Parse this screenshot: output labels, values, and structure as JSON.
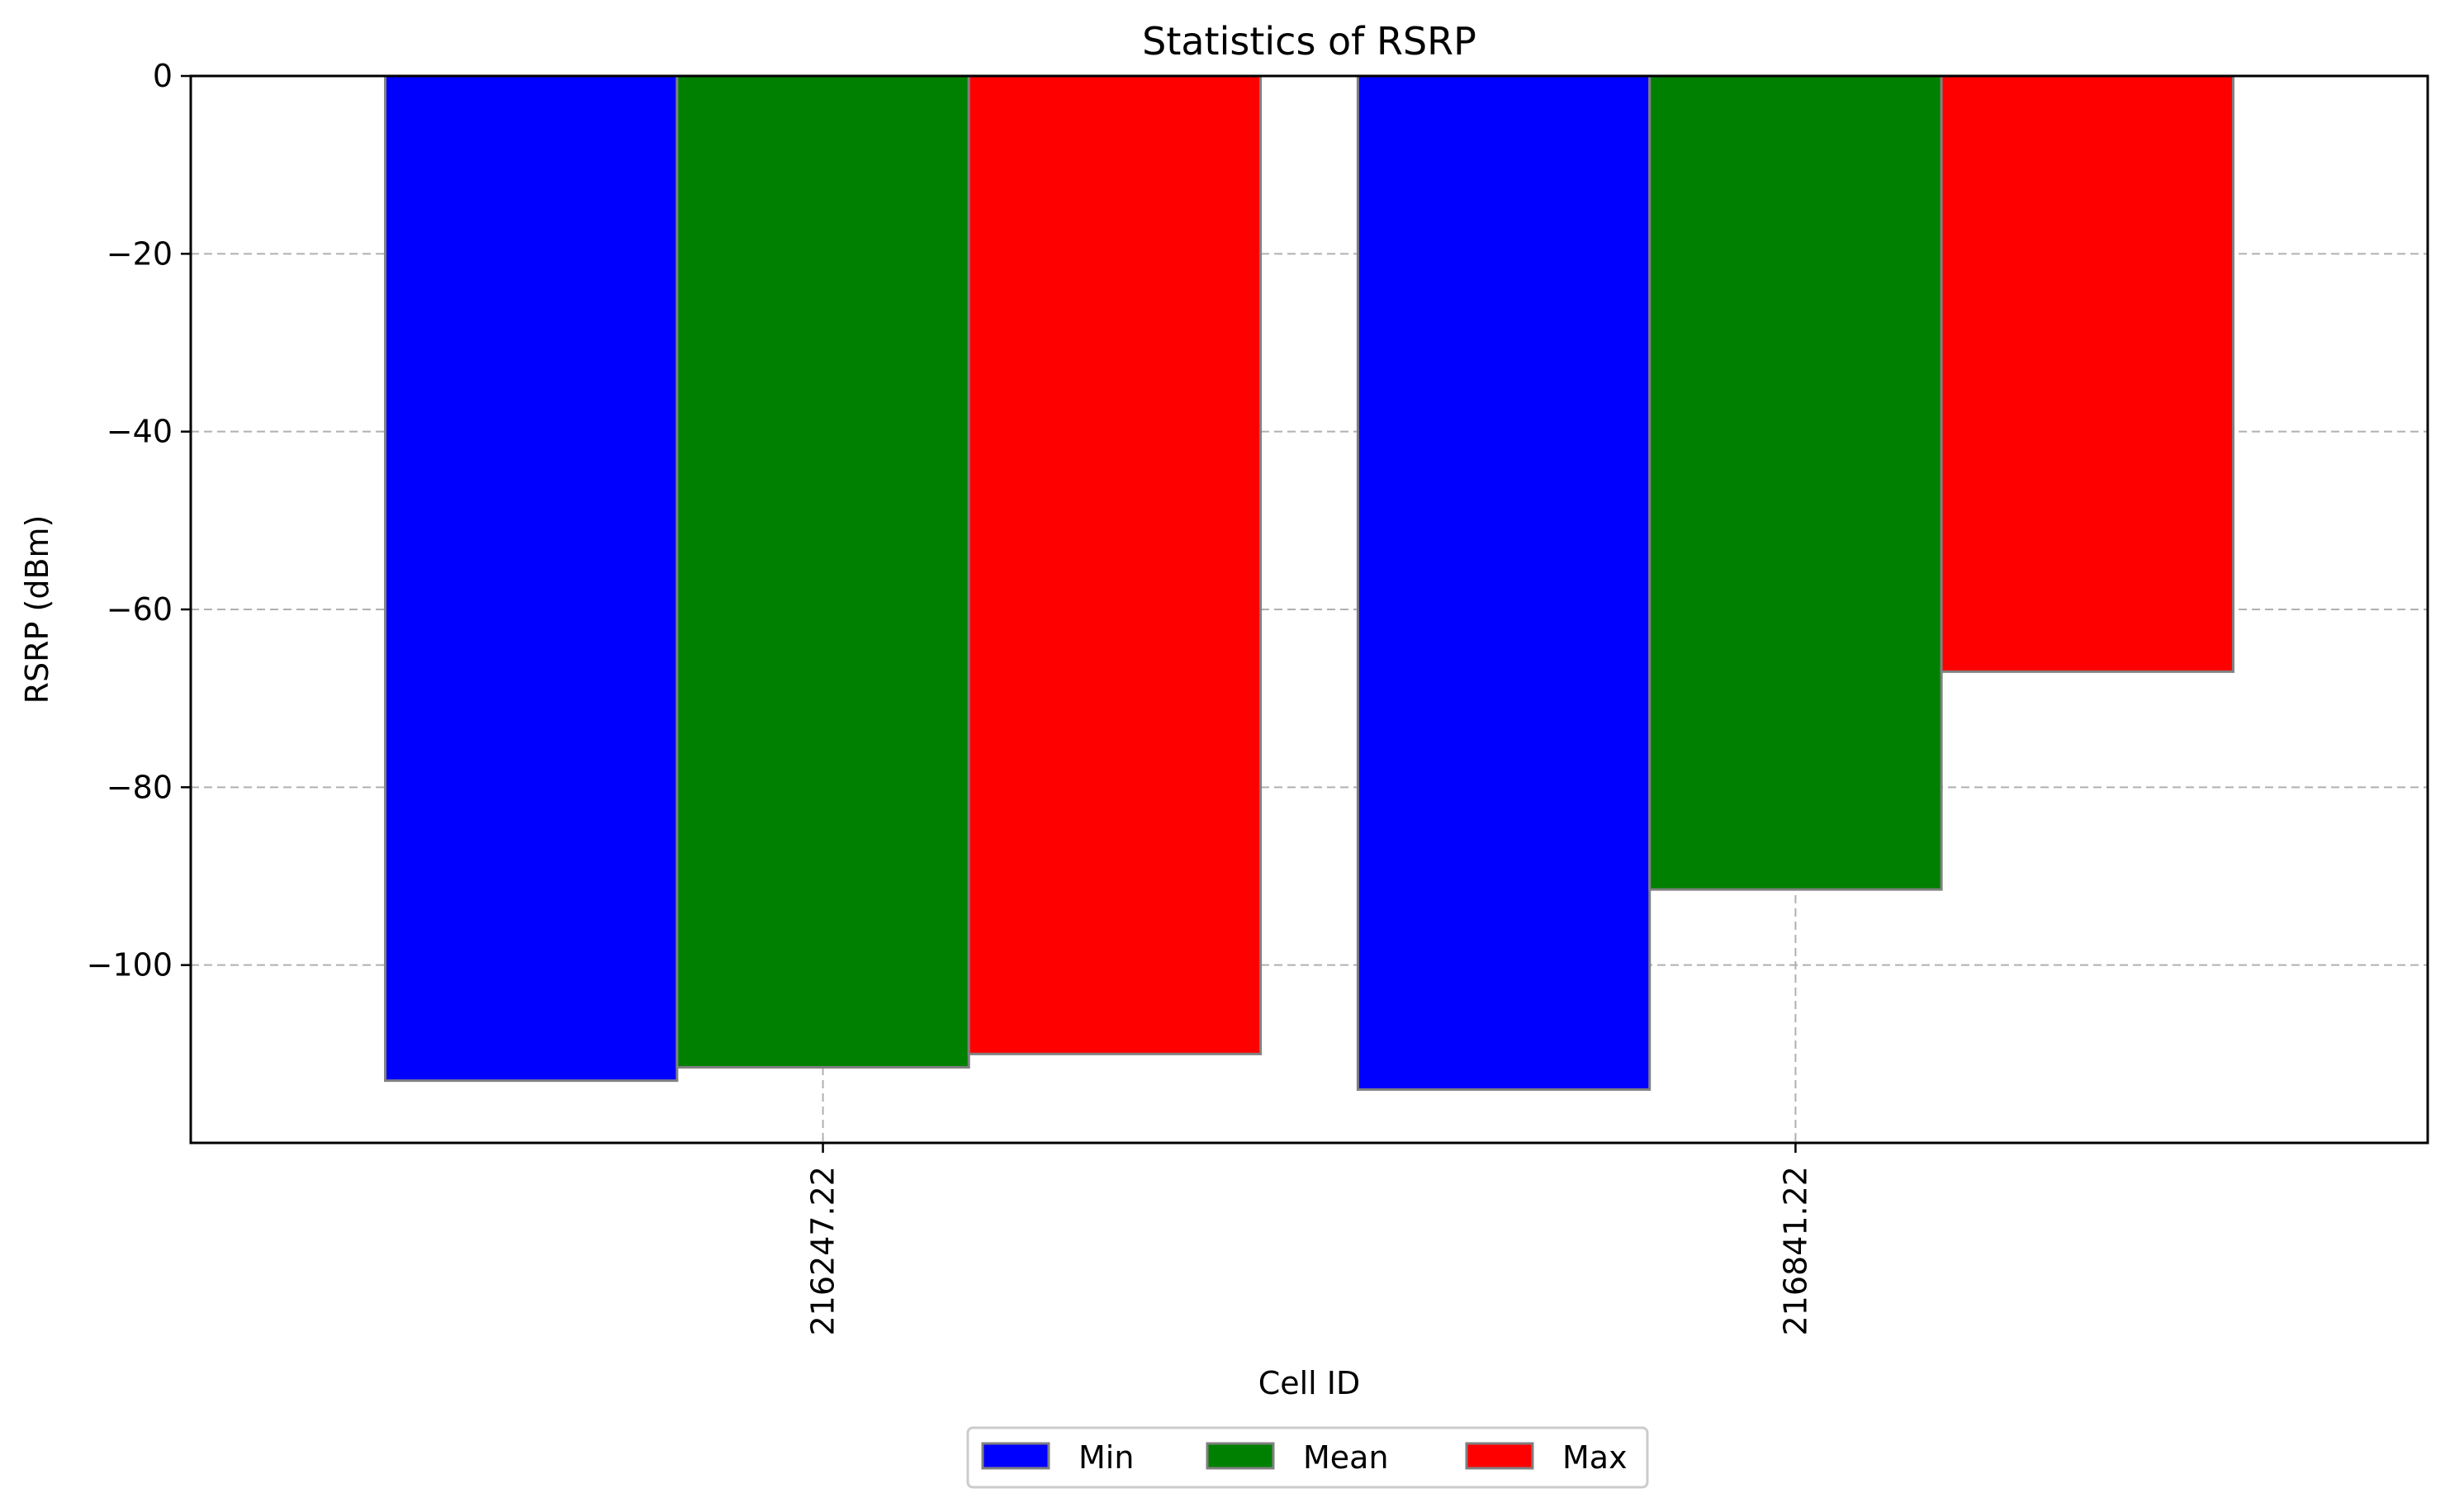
{
  "chart_data": {
    "type": "bar",
    "title": "Statistics of RSRP",
    "xlabel": "Cell ID",
    "ylabel": "RSRP (dBm)",
    "categories": [
      "216247.22",
      "216841.22"
    ],
    "series": [
      {
        "name": "Min",
        "color": "#0000ff",
        "values": [
          -113,
          -114
        ]
      },
      {
        "name": "Mean",
        "color": "#008000",
        "values": [
          -111.5,
          -91.5
        ]
      },
      {
        "name": "Max",
        "color": "#ff0000",
        "values": [
          -110,
          -67
        ]
      }
    ],
    "ylim": [
      -120,
      0
    ],
    "yticks": [
      0,
      -20,
      -40,
      -60,
      -80,
      -100
    ],
    "ytick_labels": [
      "0",
      "−20",
      "−40",
      "−60",
      "−80",
      "−100"
    ],
    "bar_edge_color": "#808080",
    "grid": true,
    "grid_style": "dashed",
    "xtick_rotation": "vertical",
    "legend_position": "bottom-center"
  }
}
